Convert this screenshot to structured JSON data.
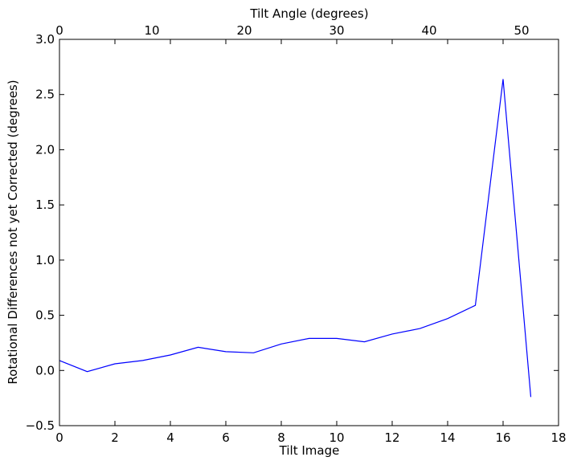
{
  "chart_data": {
    "type": "line",
    "xlabel": "Tilt Image",
    "ylabel": "Rotational Differences not yet Corrected (degrees)",
    "top_xlabel": "Tilt Angle (degrees)",
    "xlim": [
      0,
      18
    ],
    "ylim": [
      -0.5,
      3.0
    ],
    "top_xlim": [
      0,
      54
    ],
    "grid": false,
    "x_ticks": [
      "0",
      "2",
      "4",
      "6",
      "8",
      "10",
      "12",
      "14",
      "16",
      "18"
    ],
    "y_ticks": [
      "−0.5",
      "0.0",
      "0.5",
      "1.0",
      "1.5",
      "2.0",
      "2.5",
      "3.0"
    ],
    "top_x_ticks": [
      "0",
      "10",
      "20",
      "30",
      "40",
      "50"
    ],
    "series": [
      {
        "color": "#0000ff",
        "x": [
          0,
          1,
          2,
          3,
          4,
          5,
          6,
          7,
          8,
          9,
          10,
          11,
          12,
          13,
          14,
          15,
          16,
          17
        ],
        "y": [
          0.09,
          -0.01,
          0.06,
          0.09,
          0.14,
          0.21,
          0.17,
          0.16,
          0.24,
          0.29,
          0.29,
          0.26,
          0.33,
          0.38,
          0.47,
          0.59,
          2.64,
          -0.24
        ]
      }
    ]
  }
}
